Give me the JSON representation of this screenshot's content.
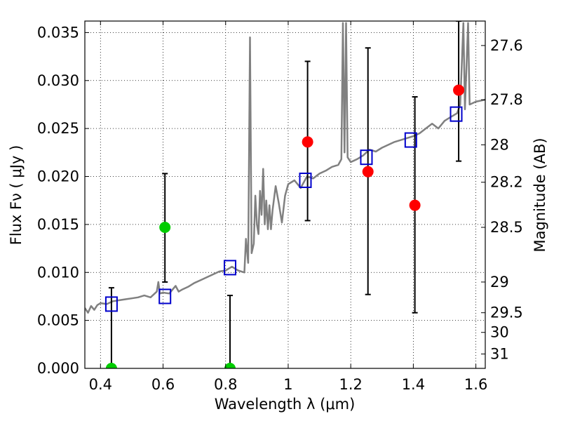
{
  "chart_data": {
    "type": "scatter",
    "xlabel": "Wavelength  λ (μm)",
    "ylabel": "Flux  Fν  ( μJy )",
    "y2label": "Magnitude (AB)",
    "xlim": [
      0.35,
      1.63
    ],
    "ylim": [
      0.0,
      0.0362
    ],
    "xticks": [
      0.4,
      0.6,
      0.8,
      1.0,
      1.2,
      1.4,
      1.6
    ],
    "xtick_labels": [
      "0.4",
      "0.6",
      "0.8",
      "1",
      "1.2",
      "1.4",
      "1.6"
    ],
    "yticks": [
      0.0,
      0.005,
      0.01,
      0.015,
      0.02,
      0.025,
      0.03,
      0.035
    ],
    "ytick_labels": [
      "0.000",
      "0.005",
      "0.010",
      "0.015",
      "0.020",
      "0.025",
      "0.030",
      "0.035"
    ],
    "y2ticks": [
      {
        "flux": 0.03365,
        "label": "27.6"
      },
      {
        "flux": 0.028,
        "label": "27.8"
      },
      {
        "flux": 0.0233,
        "label": "28"
      },
      {
        "flux": 0.0194,
        "label": "28.2"
      },
      {
        "flux": 0.0147,
        "label": "28.5"
      },
      {
        "flux": 0.009,
        "label": "29"
      },
      {
        "flux": 0.0058,
        "label": "29.5"
      },
      {
        "flux": 0.00375,
        "label": "30"
      },
      {
        "flux": 0.0015,
        "label": "31"
      }
    ],
    "grid": true,
    "colors": {
      "model": "#808080",
      "detection": "#ff0000",
      "upper": "#00cc00",
      "model_box": "#0000cc",
      "errorbar": "#000000"
    },
    "model_sed": [
      [
        0.35,
        0.0063
      ],
      [
        0.36,
        0.0058
      ],
      [
        0.37,
        0.0065
      ],
      [
        0.38,
        0.0061
      ],
      [
        0.39,
        0.0066
      ],
      [
        0.4,
        0.0068
      ],
      [
        0.42,
        0.0067
      ],
      [
        0.44,
        0.007
      ],
      [
        0.46,
        0.0071
      ],
      [
        0.48,
        0.0072
      ],
      [
        0.5,
        0.0073
      ],
      [
        0.52,
        0.0074
      ],
      [
        0.54,
        0.0076
      ],
      [
        0.56,
        0.0074
      ],
      [
        0.58,
        0.008
      ],
      [
        0.585,
        0.009
      ],
      [
        0.59,
        0.0078
      ],
      [
        0.6,
        0.0079
      ],
      [
        0.62,
        0.0078
      ],
      [
        0.64,
        0.0086
      ],
      [
        0.65,
        0.008
      ],
      [
        0.66,
        0.0082
      ],
      [
        0.68,
        0.0085
      ],
      [
        0.7,
        0.0089
      ],
      [
        0.72,
        0.0092
      ],
      [
        0.74,
        0.0095
      ],
      [
        0.76,
        0.0098
      ],
      [
        0.78,
        0.0101
      ],
      [
        0.8,
        0.0102
      ],
      [
        0.82,
        0.0106
      ],
      [
        0.84,
        0.0102
      ],
      [
        0.86,
        0.01
      ],
      [
        0.865,
        0.0135
      ],
      [
        0.872,
        0.011
      ],
      [
        0.878,
        0.0345
      ],
      [
        0.883,
        0.012
      ],
      [
        0.89,
        0.013
      ],
      [
        0.895,
        0.018
      ],
      [
        0.9,
        0.015
      ],
      [
        0.905,
        0.014
      ],
      [
        0.91,
        0.0185
      ],
      [
        0.915,
        0.016
      ],
      [
        0.92,
        0.0208
      ],
      [
        0.925,
        0.015
      ],
      [
        0.93,
        0.0175
      ],
      [
        0.935,
        0.0145
      ],
      [
        0.94,
        0.017
      ],
      [
        0.945,
        0.0145
      ],
      [
        0.95,
        0.0165
      ],
      [
        0.96,
        0.019
      ],
      [
        0.97,
        0.0172
      ],
      [
        0.98,
        0.0152
      ],
      [
        0.99,
        0.018
      ],
      [
        1.0,
        0.0192
      ],
      [
        1.02,
        0.0196
      ],
      [
        1.04,
        0.0188
      ],
      [
        1.06,
        0.02
      ],
      [
        1.08,
        0.0198
      ],
      [
        1.1,
        0.0203
      ],
      [
        1.12,
        0.0206
      ],
      [
        1.14,
        0.021
      ],
      [
        1.16,
        0.0212
      ],
      [
        1.17,
        0.0218
      ],
      [
        1.175,
        0.036
      ],
      [
        1.18,
        0.0225
      ],
      [
        1.185,
        0.036
      ],
      [
        1.19,
        0.022
      ],
      [
        1.2,
        0.0215
      ],
      [
        1.22,
        0.0218
      ],
      [
        1.24,
        0.0222
      ],
      [
        1.26,
        0.0228
      ],
      [
        1.28,
        0.0226
      ],
      [
        1.3,
        0.023
      ],
      [
        1.32,
        0.0233
      ],
      [
        1.34,
        0.0236
      ],
      [
        1.36,
        0.0238
      ],
      [
        1.38,
        0.024
      ],
      [
        1.4,
        0.0242
      ],
      [
        1.42,
        0.0245
      ],
      [
        1.44,
        0.025
      ],
      [
        1.46,
        0.0255
      ],
      [
        1.48,
        0.025
      ],
      [
        1.5,
        0.0258
      ],
      [
        1.52,
        0.0262
      ],
      [
        1.54,
        0.0266
      ],
      [
        1.55,
        0.0275
      ],
      [
        1.56,
        0.036
      ],
      [
        1.565,
        0.027
      ],
      [
        1.575,
        0.036
      ],
      [
        1.58,
        0.0275
      ],
      [
        1.6,
        0.0278
      ],
      [
        1.63,
        0.028
      ]
    ],
    "model_photometry": [
      {
        "x": 0.435,
        "y": 0.0067
      },
      {
        "x": 0.606,
        "y": 0.0075
      },
      {
        "x": 0.814,
        "y": 0.0105
      },
      {
        "x": 1.055,
        "y": 0.0196
      },
      {
        "x": 1.25,
        "y": 0.022
      },
      {
        "x": 1.392,
        "y": 0.0238
      },
      {
        "x": 1.537,
        "y": 0.0265
      }
    ],
    "detections": [
      {
        "x": 1.062,
        "y": 0.0236,
        "ylo": 0.0154,
        "yhi": 0.032
      },
      {
        "x": 1.255,
        "y": 0.0205,
        "ylo": 0.0077,
        "yhi": 0.0334
      },
      {
        "x": 1.405,
        "y": 0.017,
        "ylo": 0.0058,
        "yhi": 0.0283
      },
      {
        "x": 1.545,
        "y": 0.029,
        "ylo": 0.0216,
        "yhi": 0.0362
      }
    ],
    "weak_detections": [
      {
        "x": 0.606,
        "y": 0.0147,
        "ylo": 0.009,
        "yhi": 0.0203
      },
      {
        "x": 0.435,
        "y": 0.0,
        "ylo": 0.0,
        "yhi": 0.0084
      },
      {
        "x": 0.814,
        "y": 0.0,
        "ylo": 0.0,
        "yhi": 0.0076
      }
    ]
  }
}
